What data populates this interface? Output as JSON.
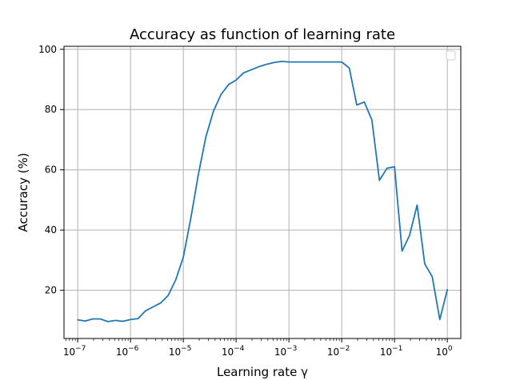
{
  "chart_data": {
    "type": "line",
    "title": "Accuracy as function of learning rate",
    "xlabel": "Learning rate γ",
    "ylabel": "Accuracy (%)",
    "x_scale": "log",
    "xlim": [
      5.5e-08,
      1.8
    ],
    "ylim": [
      4,
      101
    ],
    "grid": true,
    "legend": "top-right (empty)",
    "xticks": [
      {
        "value": 1e-07,
        "base": "10",
        "exp": "−7"
      },
      {
        "value": 1e-06,
        "base": "10",
        "exp": "−6"
      },
      {
        "value": 1e-05,
        "base": "10",
        "exp": "−5"
      },
      {
        "value": 0.0001,
        "base": "10",
        "exp": "−4"
      },
      {
        "value": 0.001,
        "base": "10",
        "exp": "−3"
      },
      {
        "value": 0.01,
        "base": "10",
        "exp": "−2"
      },
      {
        "value": 0.1,
        "base": "10",
        "exp": "−1"
      },
      {
        "value": 1,
        "base": "10",
        "exp": "0"
      }
    ],
    "yticks": [
      {
        "value": 20,
        "label": "20"
      },
      {
        "value": 40,
        "label": "40"
      },
      {
        "value": 60,
        "label": "60"
      },
      {
        "value": 80,
        "label": "80"
      },
      {
        "value": 100,
        "label": "100"
      }
    ],
    "series": [
      {
        "color": "#1f77b4",
        "x": [
          1e-07,
          1.39e-07,
          1.93e-07,
          2.68e-07,
          3.73e-07,
          5.18e-07,
          7.2e-07,
          1e-06,
          1.39e-06,
          1.93e-06,
          2.68e-06,
          3.73e-06,
          5.18e-06,
          7.2e-06,
          1e-05,
          1.39e-05,
          1.93e-05,
          2.68e-05,
          3.73e-05,
          5.18e-05,
          7.2e-05,
          0.0001,
          0.000139,
          0.000193,
          0.000268,
          0.000373,
          0.000518,
          0.00072,
          0.001,
          0.00139,
          0.00193,
          0.00268,
          0.00373,
          0.00518,
          0.0072,
          0.01,
          0.0139,
          0.0193,
          0.0268,
          0.0373,
          0.0518,
          0.072,
          0.1,
          0.139,
          0.193,
          0.268,
          0.373,
          0.518,
          0.72,
          1
        ],
        "y": [
          10.2,
          9.8,
          10.5,
          10.5,
          9.6,
          10.0,
          9.7,
          10.3,
          10.6,
          13.2,
          14.5,
          15.8,
          18.3,
          23.5,
          31.0,
          44.0,
          58.5,
          71.0,
          79.5,
          85.0,
          88.3,
          89.8,
          92.2,
          93.2,
          94.2,
          95.0,
          95.6,
          96.0,
          95.8,
          95.8,
          95.8,
          95.8,
          95.8,
          95.8,
          95.8,
          95.8,
          93.8,
          81.5,
          82.5,
          76.5,
          56.5,
          60.5,
          61.0,
          33.0,
          38.3,
          48.3,
          28.8,
          24.5,
          10.3,
          20.2
        ]
      }
    ]
  }
}
